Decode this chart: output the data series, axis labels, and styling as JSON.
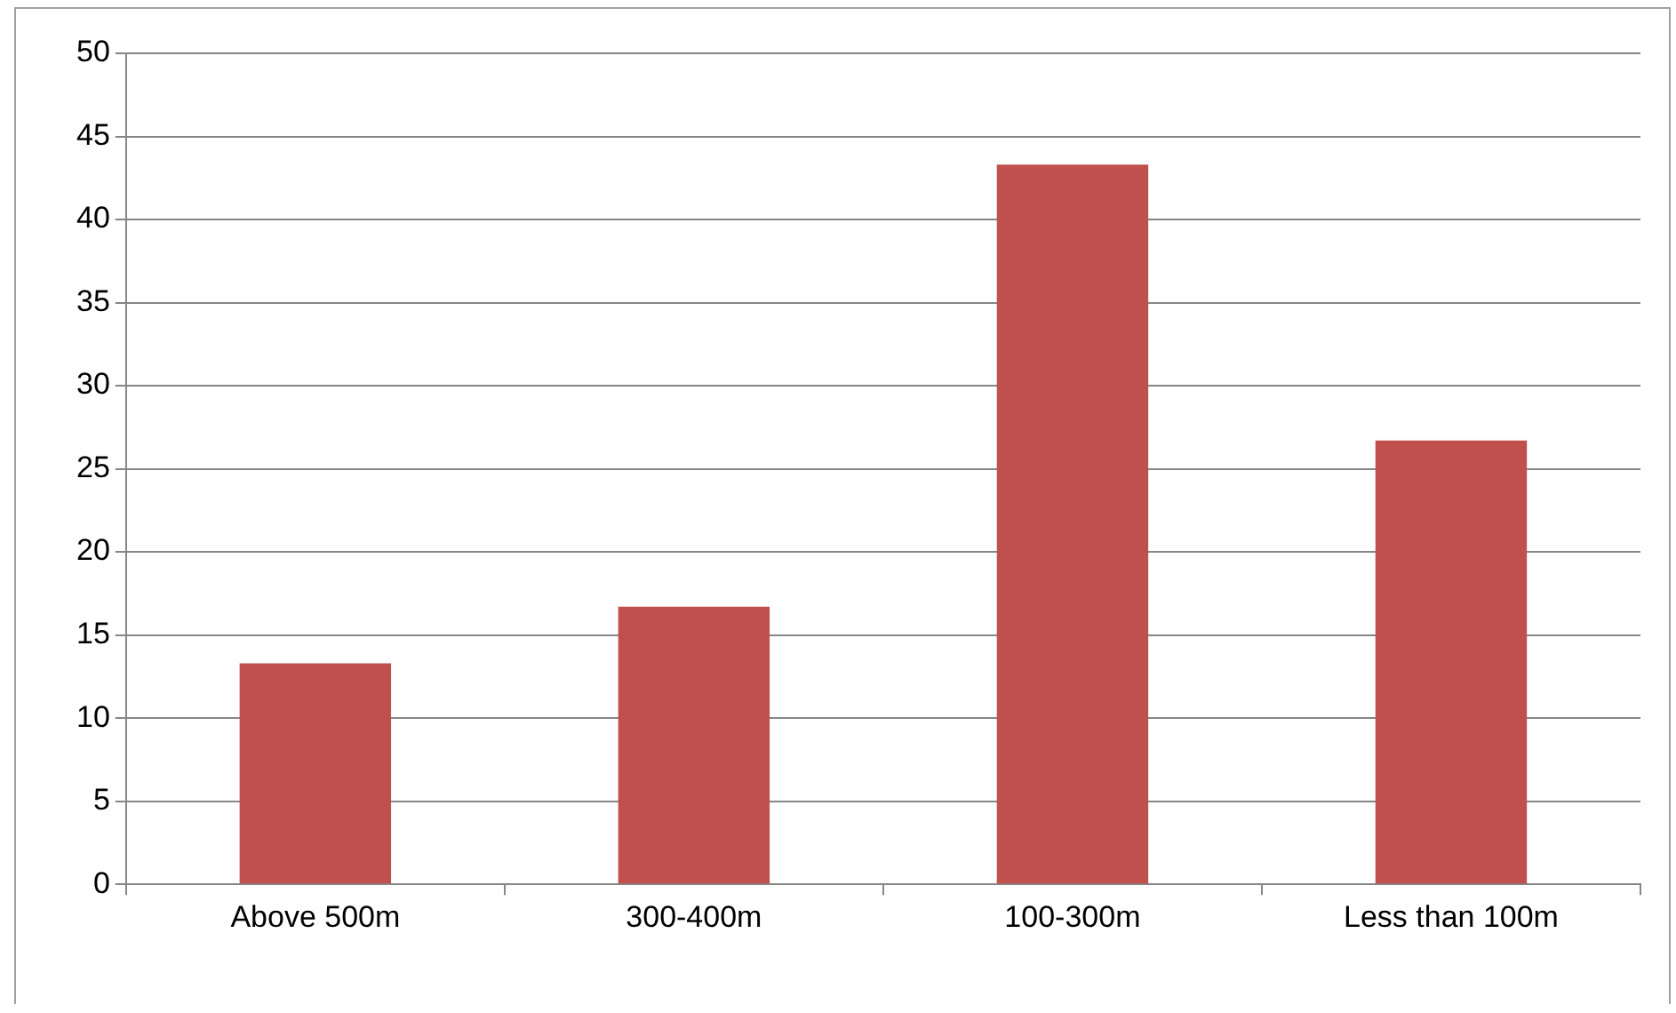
{
  "chart_data": {
    "type": "bar",
    "categories": [
      "Above 500m",
      "300-400m",
      "100-300m",
      "Less than 100m"
    ],
    "values": [
      13.3,
      16.7,
      43.3,
      26.7
    ],
    "color": "#c0504d",
    "ylim": [
      0,
      50
    ],
    "yticks": [
      0,
      5,
      10,
      15,
      20,
      25,
      30,
      35,
      40,
      45,
      50
    ],
    "grid": "y",
    "legend": false
  }
}
